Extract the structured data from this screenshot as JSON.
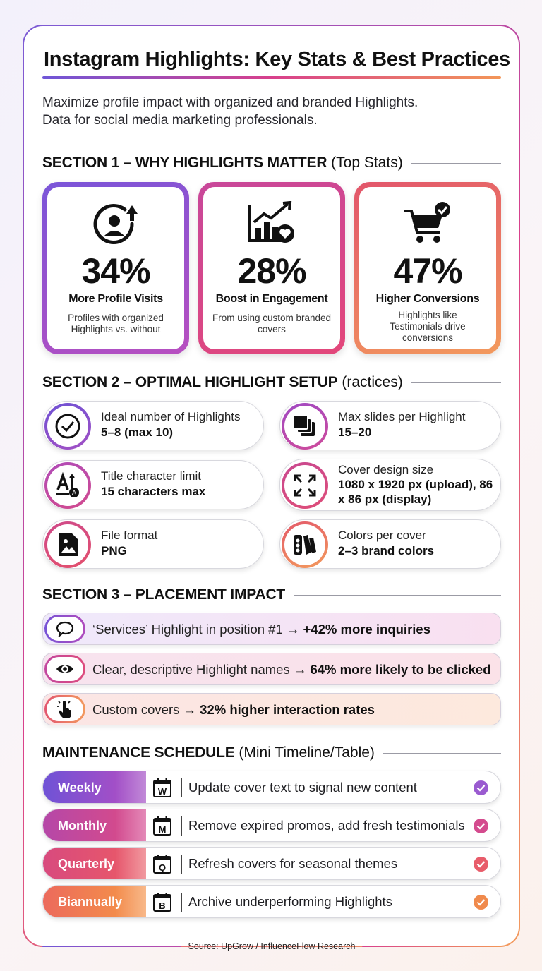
{
  "title": "Instagram Highlights: Key Stats & Best Practices",
  "subtitle_line1": "Maximize profile impact with organized and branded Highlights.",
  "subtitle_line2": "Data for social media marketing professionals.",
  "section1": {
    "heading_bold": "SECTION 1 – WHY HIGHLIGHTS MATTER",
    "heading_light": "(Top Stats)",
    "stats": [
      {
        "icon": "user-arrow-up-icon",
        "value": "34%",
        "label": "More Profile Visits",
        "desc": "Profiles with organized Highlights vs. without"
      },
      {
        "icon": "chart-heart-icon",
        "value": "28%",
        "label": "Boost in Engagement",
        "desc": "From using custom branded covers"
      },
      {
        "icon": "cart-check-icon",
        "value": "47%",
        "label": "Higher Conversions",
        "desc": "Highlights like Testimonials drive conversions"
      }
    ]
  },
  "section2": {
    "heading_bold": "SECTION 2 – OPTIMAL HIGHLIGHT SETUP",
    "heading_light": "(ractices)",
    "items": [
      {
        "icon": "check-circle-icon",
        "label": "Ideal number of Highlights",
        "value": "5–8 (max 10)"
      },
      {
        "icon": "stacked-slides-icon",
        "label": "Max slides per Highlight",
        "value": "15–20"
      },
      {
        "icon": "text-size-icon",
        "label": "Title character limit",
        "value": "15 characters max"
      },
      {
        "icon": "expand-arrows-icon",
        "label": "Cover design size",
        "value": "1080 x 1920 px (upload), 86 x 86 px (display)"
      },
      {
        "icon": "image-file-icon",
        "label": "File format",
        "value": "PNG"
      },
      {
        "icon": "color-swatch-icon",
        "label": "Colors per cover",
        "value": "2–3 brand colors"
      }
    ]
  },
  "section3": {
    "heading_bold": "SECTION 3 – PLACEMENT IMPACT",
    "items": [
      {
        "icon": "chat-bubble-icon",
        "text": "‘Services’ Highlight in position #1 → ",
        "bold": "+42% more inquiries"
      },
      {
        "icon": "eye-icon",
        "text": "Clear, descriptive Highlight names → ",
        "bold": "64% more likely to be clicked"
      },
      {
        "icon": "tap-hand-icon",
        "text": "Custom covers → ",
        "bold": "32% higher interaction rates"
      }
    ]
  },
  "maintenance": {
    "heading_bold": "MAINTENANCE SCHEDULE",
    "heading_light": "(Mini Timeline/Table)",
    "rows": [
      {
        "tag": "Weekly",
        "letter": "W",
        "text": "Update cover text to signal new content",
        "color": "#8b57cf"
      },
      {
        "tag": "Monthly",
        "letter": "M",
        "text": "Remove expired promos, add fresh testimonials",
        "color": "#cc4894"
      },
      {
        "tag": "Quarterly",
        "letter": "Q",
        "text": "Refresh covers for seasonal themes",
        "color": "#e5566e"
      },
      {
        "tag": "Biannually",
        "letter": "B",
        "text": "Archive underperforming Highlights",
        "color": "#f08a4c"
      }
    ]
  },
  "footer": "Source: UpGrow / InfluenceFlow Research",
  "colors": {
    "purple": "#7b5bd6",
    "magenta": "#d9418b",
    "orange": "#f39a5d"
  }
}
